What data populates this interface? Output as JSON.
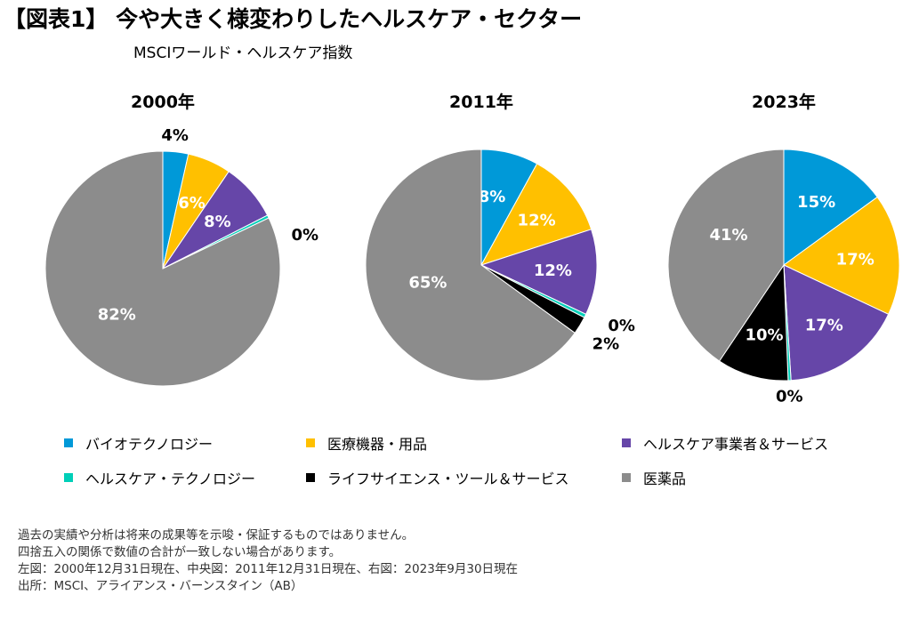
{
  "header": {
    "title": "【図表1】 今や大きく様変わりしたヘルスケア・セクター",
    "subtitle": "MSCIワールド・ヘルスケア指数"
  },
  "colors": {
    "biotech": "#0099D8",
    "devices": "#FFC000",
    "providers": "#6646A8",
    "hc_tech": "#00CFB8",
    "life_sci": "#000000",
    "pharma": "#8C8C8C"
  },
  "legend": [
    {
      "label": "バイオテクノロジー",
      "color": "#0099D8"
    },
    {
      "label": "医療機器・用品",
      "color": "#FFC000"
    },
    {
      "label": "ヘルスケア事業者＆サービス",
      "color": "#6646A8"
    },
    {
      "label": "ヘルスケア・テクノロジー",
      "color": "#00CFB8"
    },
    {
      "label": "ライフサイエンス・ツール＆サービス",
      "color": "#000000"
    },
    {
      "label": "医薬品",
      "color": "#8C8C8C"
    }
  ],
  "chart_data": [
    {
      "type": "pie",
      "title": "2000年",
      "slices": [
        {
          "category": "バイオテクノロジー",
          "value": 3.5,
          "label": "4%"
        },
        {
          "category": "医療機器・用品",
          "value": 6,
          "label": "6%"
        },
        {
          "category": "ヘルスケア事業者＆サービス",
          "value": 8,
          "label": "8%"
        },
        {
          "category": "ヘルスケア・テクノロジー",
          "value": 0.4,
          "label": "0%"
        },
        {
          "category": "ライフサイエンス・ツール＆サービス",
          "value": 0,
          "label": ""
        },
        {
          "category": "医薬品",
          "value": 82.1,
          "label": "82%"
        }
      ]
    },
    {
      "type": "pie",
      "title": "2011年",
      "slices": [
        {
          "category": "バイオテクノロジー",
          "value": 8,
          "label": "8%"
        },
        {
          "category": "医療機器・用品",
          "value": 12,
          "label": "12%"
        },
        {
          "category": "ヘルスケア事業者＆サービス",
          "value": 12,
          "label": "12%"
        },
        {
          "category": "ヘルスケア・テクノロジー",
          "value": 0.5,
          "label": "0%"
        },
        {
          "category": "ライフサイエンス・ツール＆サービス",
          "value": 2.5,
          "label": "2%"
        },
        {
          "category": "医薬品",
          "value": 65,
          "label": "65%"
        }
      ]
    },
    {
      "type": "pie",
      "title": "2023年",
      "slices": [
        {
          "category": "バイオテクノロジー",
          "value": 15,
          "label": "15%"
        },
        {
          "category": "医療機器・用品",
          "value": 17,
          "label": "17%"
        },
        {
          "category": "ヘルスケア事業者＆サービス",
          "value": 17,
          "label": "17%"
        },
        {
          "category": "ヘルスケア・テクノロジー",
          "value": 0.4,
          "label": "0%"
        },
        {
          "category": "ライフサイエンス・ツール＆サービス",
          "value": 10,
          "label": "10%"
        },
        {
          "category": "医薬品",
          "value": 40.6,
          "label": "41%"
        }
      ]
    }
  ],
  "notes": [
    "過去の実績や分析は将来の成果等を示唆・保証するものではありません。",
    "四捨五入の関係で数値の合計が一致しない場合があります。",
    "左図：2000年12月31日現在、中央図：2011年12月31日現在、右図：2023年9月30日現在",
    "出所：MSCI、アライアンス・バーンスタイン（AB）"
  ]
}
